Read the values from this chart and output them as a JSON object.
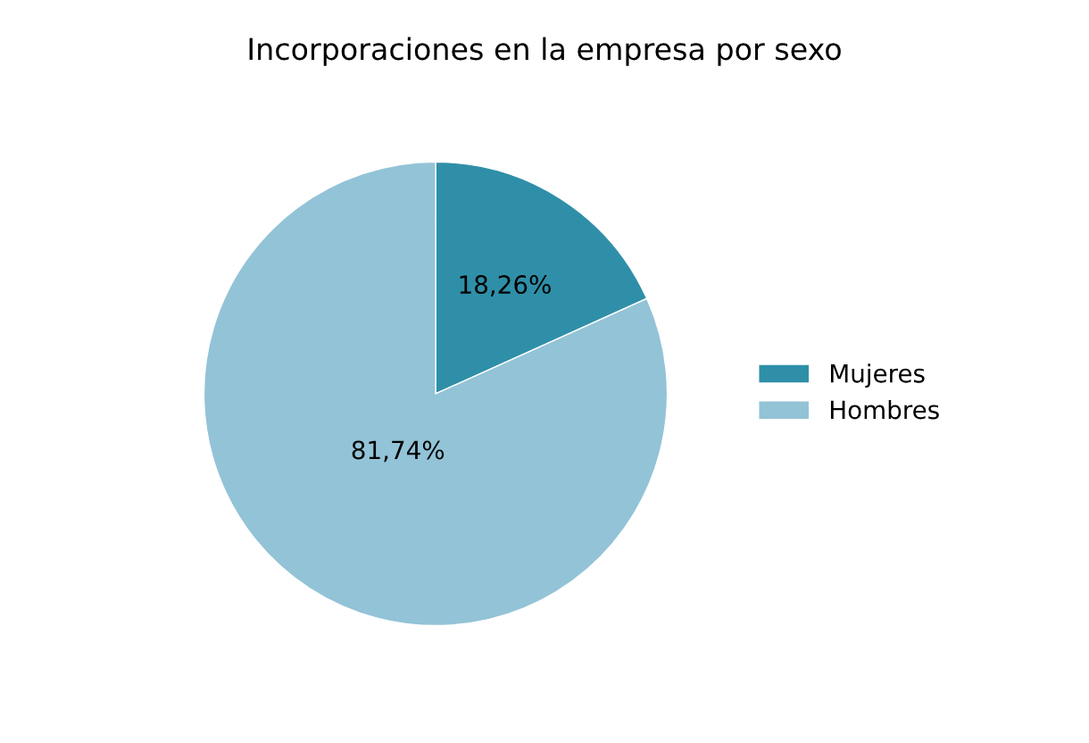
{
  "chart_data": {
    "type": "pie",
    "title": "Incorporaciones en la empresa por sexo",
    "categories": [
      "Mujeres",
      "Hombres"
    ],
    "values": [
      18.26,
      81.74
    ],
    "colors": [
      "#2f8fa8",
      "#93c3d7"
    ],
    "value_labels": [
      "18,26%",
      "81,74%"
    ],
    "legend": "right"
  }
}
